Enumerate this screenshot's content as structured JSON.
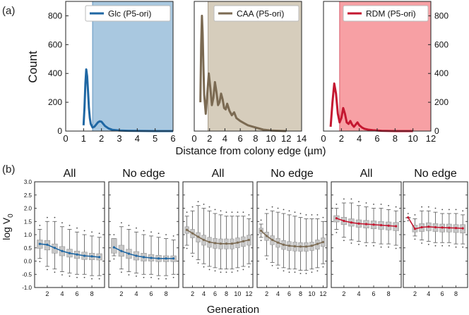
{
  "figure": {
    "label_a": "(a)",
    "label_b": "(b)",
    "top_ylabel": "Count",
    "top_xlabel": "Distance from colony edge (µm)",
    "bottom_ylabel": "log V",
    "bottom_ylabel_sub": "0",
    "bottom_xlabel": "Generation"
  },
  "colors": {
    "glc": "#1f67a3",
    "glc_fill": "#a9c8e0",
    "caa": "#7b6a52",
    "caa_fill": "#d6cdbc",
    "rdm": "#c41730",
    "rdm_fill": "#f7a0a4",
    "box_gray": "#c2c2c2"
  },
  "chart_data": [
    {
      "type": "line",
      "legend": "Glc (P5-ori)",
      "color_key": "glc",
      "xlim": [
        0,
        6
      ],
      "ylim": [
        0,
        900
      ],
      "xticks": [
        0,
        1,
        2,
        3,
        4,
        5,
        6
      ],
      "yticks": [
        0,
        200,
        400,
        600,
        800
      ],
      "shade_from": 1.5,
      "x": [
        1.0,
        1.05,
        1.1,
        1.15,
        1.2,
        1.25,
        1.3,
        1.35,
        1.4,
        1.5,
        1.6,
        1.7,
        1.8,
        1.9,
        2.0,
        2.1,
        2.2,
        2.4,
        2.6,
        3.0,
        3.5,
        4.0,
        5.0,
        6.0
      ],
      "y": [
        40,
        160,
        330,
        428,
        380,
        270,
        160,
        90,
        50,
        25,
        30,
        45,
        60,
        68,
        65,
        50,
        35,
        18,
        9,
        4,
        2,
        1,
        0,
        0
      ]
    },
    {
      "type": "line",
      "legend": "CAA (P5-ori)",
      "color_key": "caa",
      "xlim": [
        0,
        14
      ],
      "ylim": [
        0,
        900
      ],
      "xticks": [
        0,
        2,
        4,
        6,
        8,
        10,
        12,
        14
      ],
      "yticks": [],
      "shade_from": 1.8,
      "x": [
        0.8,
        0.9,
        1.0,
        1.1,
        1.2,
        1.3,
        1.5,
        1.7,
        1.9,
        2.1,
        2.3,
        2.5,
        2.7,
        2.9,
        3.1,
        3.3,
        3.5,
        3.7,
        3.9,
        4.1,
        4.3,
        4.6,
        4.9,
        5.2,
        5.5,
        6.0,
        6.5,
        7.0,
        8.0,
        9.0,
        10.0,
        11.0,
        12.0
      ],
      "y": [
        200,
        600,
        800,
        680,
        450,
        250,
        120,
        260,
        400,
        300,
        180,
        230,
        340,
        270,
        180,
        200,
        260,
        220,
        160,
        150,
        190,
        140,
        110,
        130,
        90,
        70,
        55,
        40,
        25,
        10,
        4,
        2,
        0
      ]
    },
    {
      "type": "line",
      "legend": "RDM (P5-ori)",
      "color_key": "rdm",
      "xlim": [
        0,
        12
      ],
      "ylim": [
        0,
        900
      ],
      "xticks": [
        0,
        2,
        4,
        6,
        8,
        10,
        12
      ],
      "yticks": [
        0,
        200,
        400,
        600,
        800
      ],
      "y_axis_side": "right",
      "shade_from": 1.8,
      "x": [
        0.8,
        1.0,
        1.2,
        1.4,
        1.6,
        1.8,
        2.0,
        2.2,
        2.4,
        2.6,
        2.8,
        3.0,
        3.2,
        3.4,
        3.6,
        3.8,
        4.0,
        4.3,
        4.6,
        5.0,
        5.5,
        6.0,
        6.5,
        7.0,
        8.0,
        9.0,
        10.0
      ],
      "y": [
        30,
        200,
        330,
        260,
        120,
        60,
        90,
        160,
        120,
        60,
        50,
        70,
        45,
        30,
        45,
        60,
        40,
        25,
        15,
        10,
        6,
        4,
        2,
        1,
        0,
        0,
        0
      ]
    },
    {
      "type": "box",
      "title": "All",
      "color_key": "glc",
      "generations": [
        1,
        2,
        3,
        4,
        5,
        6,
        7,
        8,
        9
      ],
      "medians": [
        0.65,
        0.62,
        0.5,
        0.38,
        0.3,
        0.25,
        0.2,
        0.18,
        0.15
      ],
      "q1": [
        0.48,
        0.42,
        0.3,
        0.2,
        0.15,
        0.1,
        0.06,
        0.05,
        0.04
      ],
      "q3": [
        0.8,
        0.78,
        0.65,
        0.55,
        0.45,
        0.38,
        0.34,
        0.3,
        0.28
      ],
      "wlo": [
        0.1,
        -0.2,
        -0.3,
        -0.4,
        -0.45,
        -0.5,
        -0.5,
        -0.55,
        -0.55
      ],
      "whi": [
        1.2,
        1.5,
        1.5,
        1.3,
        1.2,
        1.1,
        1.0,
        0.95,
        0.9
      ],
      "xticks": [
        2,
        4,
        6,
        8
      ],
      "ylim": [
        -1.0,
        3.0
      ]
    },
    {
      "type": "box",
      "title": "No edge",
      "color_key": "glc",
      "generations": [
        1,
        2,
        3,
        4,
        5,
        6,
        7,
        8,
        9
      ],
      "medians": [
        0.52,
        0.38,
        0.28,
        0.2,
        0.15,
        0.12,
        0.1,
        0.1,
        0.1
      ],
      "q1": [
        0.3,
        0.18,
        0.1,
        0.04,
        0.0,
        0.0,
        -0.02,
        -0.02,
        -0.02
      ],
      "q3": [
        0.85,
        0.6,
        0.45,
        0.36,
        0.3,
        0.25,
        0.22,
        0.2,
        0.2
      ],
      "wlo": [
        0.2,
        -0.3,
        -0.4,
        -0.45,
        -0.5,
        -0.5,
        -0.55,
        -0.55,
        -0.5
      ],
      "whi": [
        0.85,
        1.3,
        1.2,
        1.1,
        1.0,
        0.95,
        0.9,
        0.85,
        0.8
      ],
      "xticks": [
        2,
        4,
        6,
        8
      ],
      "ylim": [
        -1.0,
        3.0
      ]
    },
    {
      "type": "box",
      "title": "All",
      "color_key": "caa",
      "generations": [
        1,
        2,
        3,
        4,
        5,
        6,
        7,
        8,
        9,
        10,
        11,
        12
      ],
      "medians": [
        1.18,
        1.05,
        0.92,
        0.8,
        0.72,
        0.68,
        0.66,
        0.66,
        0.66,
        0.7,
        0.75,
        0.8
      ],
      "q1": [
        1.05,
        0.88,
        0.72,
        0.6,
        0.52,
        0.48,
        0.46,
        0.46,
        0.46,
        0.5,
        0.55,
        0.6
      ],
      "q3": [
        1.3,
        1.2,
        1.08,
        0.98,
        0.9,
        0.86,
        0.84,
        0.84,
        0.84,
        0.88,
        0.92,
        0.98
      ],
      "wlo": [
        0.6,
        0.3,
        0.05,
        -0.1,
        -0.2,
        -0.25,
        -0.3,
        -0.3,
        -0.3,
        -0.25,
        -0.2,
        -0.1
      ],
      "whi": [
        1.7,
        1.9,
        2.1,
        2.0,
        1.9,
        1.8,
        1.75,
        1.7,
        1.7,
        1.7,
        1.7,
        1.6
      ],
      "xticks": [
        2,
        4,
        6,
        8,
        10,
        12
      ],
      "ylim": [
        -1.0,
        3.0
      ]
    },
    {
      "type": "box",
      "title": "No edge",
      "color_key": "caa",
      "generations": [
        1,
        2,
        3,
        4,
        5,
        6,
        7,
        8,
        9,
        10,
        11,
        12
      ],
      "medians": [
        1.15,
        0.95,
        0.8,
        0.7,
        0.62,
        0.58,
        0.56,
        0.55,
        0.55,
        0.58,
        0.65,
        0.72
      ],
      "q1": [
        1.05,
        0.78,
        0.62,
        0.52,
        0.44,
        0.4,
        0.38,
        0.37,
        0.37,
        0.4,
        0.45,
        0.55
      ],
      "q3": [
        1.25,
        1.1,
        0.96,
        0.86,
        0.78,
        0.74,
        0.72,
        0.7,
        0.7,
        0.72,
        0.8,
        0.88
      ],
      "wlo": [
        0.9,
        0.2,
        -0.05,
        -0.15,
        -0.25,
        -0.3,
        -0.3,
        -0.35,
        -0.35,
        -0.3,
        -0.25,
        -0.1
      ],
      "whi": [
        1.4,
        1.8,
        1.9,
        1.85,
        1.8,
        1.75,
        1.7,
        1.65,
        1.6,
        1.6,
        1.6,
        1.5
      ],
      "xticks": [
        2,
        4,
        6,
        8,
        10,
        12
      ],
      "ylim": [
        -1.0,
        3.0
      ]
    },
    {
      "type": "box",
      "title": "All",
      "color_key": "rdm",
      "generations": [
        1,
        2,
        3,
        4,
        5,
        6,
        7,
        8,
        9
      ],
      "medians": [
        1.62,
        1.52,
        1.46,
        1.42,
        1.4,
        1.38,
        1.36,
        1.34,
        1.32
      ],
      "q1": [
        1.48,
        1.38,
        1.32,
        1.28,
        1.25,
        1.22,
        1.2,
        1.18,
        1.15
      ],
      "q3": [
        1.72,
        1.66,
        1.6,
        1.56,
        1.54,
        1.52,
        1.5,
        1.48,
        1.46
      ],
      "wlo": [
        1.2,
        0.9,
        0.8,
        0.75,
        0.7,
        0.7,
        0.65,
        0.65,
        0.6
      ],
      "whi": [
        2.0,
        2.2,
        2.2,
        2.1,
        2.05,
        2.0,
        2.0,
        1.95,
        1.9
      ],
      "xticks": [
        2,
        4,
        6,
        8
      ],
      "ylim": [
        -1.0,
        3.0
      ]
    },
    {
      "type": "box",
      "title": "No edge",
      "color_key": "rdm",
      "generations": [
        1,
        2,
        3,
        4,
        5,
        6,
        7,
        8,
        9
      ],
      "medians": [
        1.65,
        1.22,
        1.28,
        1.3,
        1.28,
        1.27,
        1.26,
        1.25,
        1.24
      ],
      "q1": [
        1.65,
        1.1,
        1.12,
        1.15,
        1.12,
        1.1,
        1.1,
        1.08,
        1.06
      ],
      "q3": [
        1.65,
        1.36,
        1.42,
        1.45,
        1.42,
        1.4,
        1.4,
        1.38,
        1.38
      ],
      "wlo": [
        1.65,
        0.95,
        0.8,
        0.75,
        0.7,
        0.7,
        0.7,
        0.65,
        0.65
      ],
      "whi": [
        1.65,
        1.6,
        1.9,
        1.9,
        1.85,
        1.8,
        1.8,
        1.8,
        1.75
      ],
      "xticks": [
        2,
        4,
        6,
        8
      ],
      "ylim": [
        -1.0,
        3.0
      ]
    }
  ],
  "bottom_yticks": [
    "-1.0",
    "-0.5",
    "0.0",
    "0.5",
    "1.0",
    "1.5",
    "2.0",
    "2.5",
    "3.0"
  ],
  "bottom_ytick_values": [
    -1.0,
    -0.5,
    0.0,
    0.5,
    1.0,
    1.5,
    2.0,
    2.5,
    3.0
  ]
}
